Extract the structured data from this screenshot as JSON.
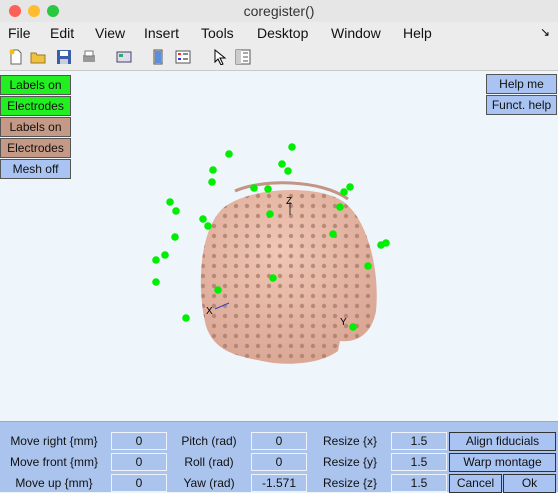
{
  "window": {
    "title": "coregister()"
  },
  "menu": [
    "File",
    "Edit",
    "View",
    "Insert",
    "Tools",
    "Desktop",
    "Window",
    "Help"
  ],
  "left_buttons": [
    "Labels on",
    "Electrodes",
    "Labels on",
    "Electrodes",
    "Mesh off"
  ],
  "right_buttons": [
    "Help me",
    "Funct. help"
  ],
  "axes": {
    "x": "X",
    "y": "Y",
    "z": "Z"
  },
  "controls": {
    "move_right_label": "Move right {mm}",
    "move_right_value": "0",
    "move_front_label": "Move front {mm}",
    "move_front_value": "0",
    "move_up_label": "Move up {mm}",
    "move_up_value": "0",
    "pitch_label": "Pitch (rad)",
    "pitch_value": "0",
    "roll_label": "Roll (rad)",
    "roll_value": "0",
    "yaw_label": "Yaw (rad)",
    "yaw_value": "-1.571",
    "resize_x_label": "Resize {x}",
    "resize_x_value": "1.5",
    "resize_y_label": "Resize {y}",
    "resize_y_value": "1.5",
    "resize_z_label": "Resize {z}",
    "resize_z_value": "1.5",
    "align_label": "Align fiducials",
    "warp_label": "Warp montage",
    "cancel_label": "Cancel",
    "ok_label": "Ok"
  },
  "colors": {
    "electrode": "#00ee00",
    "head": "#e8b8a6",
    "panel": "#aac4ee"
  }
}
